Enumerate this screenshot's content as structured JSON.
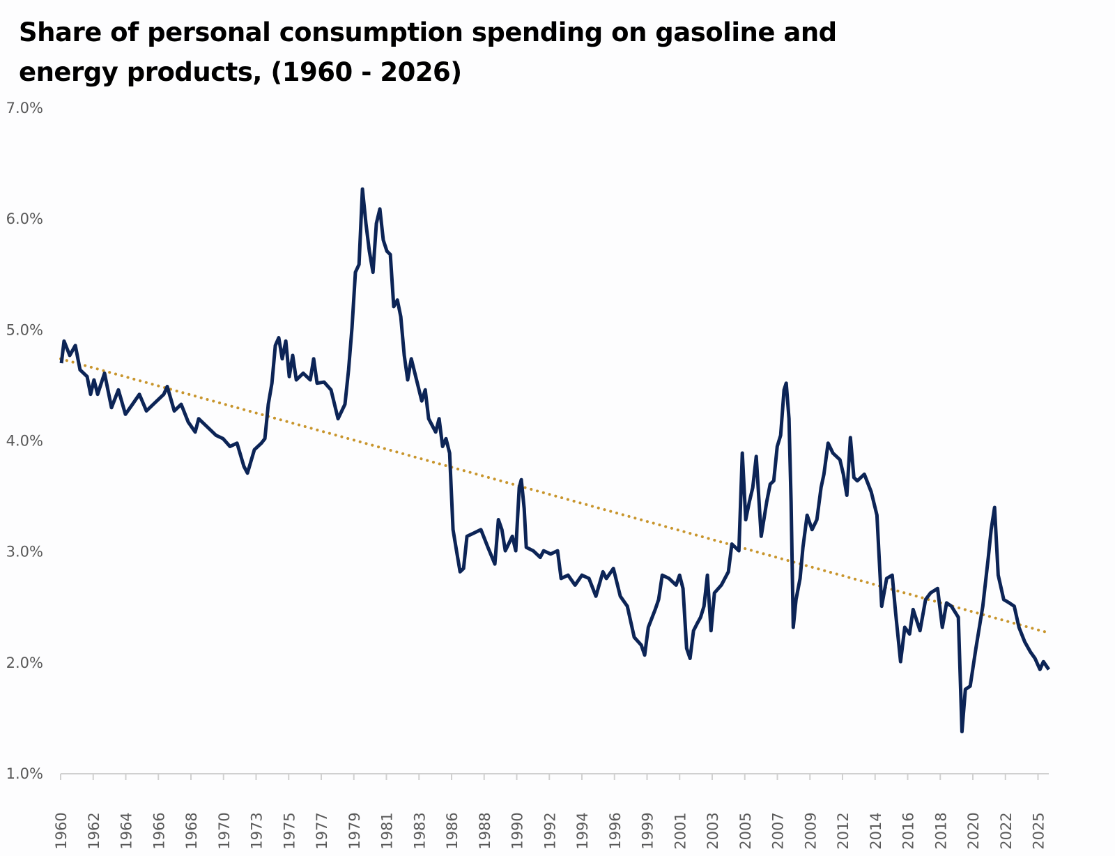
{
  "chart_data": {
    "type": "line",
    "title": "Share of personal consumption spending on gasoline and energy products, (1960 - 2026)",
    "xlabel": "",
    "ylabel": "",
    "ylim": [
      1.0,
      7.0
    ],
    "xlim": [
      1960,
      2026
    ],
    "y_ticks": [
      "1.0%",
      "2.0%",
      "3.0%",
      "4.0%",
      "5.0%",
      "6.0%",
      "7.0%"
    ],
    "x_ticks": [
      "1960",
      "1962",
      "1964",
      "1966",
      "1968",
      "1970",
      "1973",
      "1975",
      "1977",
      "1979",
      "1981",
      "1983",
      "1986",
      "1988",
      "1990",
      "1992",
      "1994",
      "1996",
      "1999",
      "2001",
      "2003",
      "2005",
      "2007",
      "2009",
      "2012",
      "2014",
      "2016",
      "2018",
      "2020",
      "2022",
      "2025"
    ],
    "grid": false,
    "legend": "none",
    "colors": {
      "series": "#0c2456",
      "trend": "#c8952c",
      "axis": "#d0d0d0",
      "text": "#595959"
    },
    "series": [
      {
        "style": "solid",
        "points": [
          [
            1960.05,
            4.7
          ],
          [
            1960.23,
            4.9
          ],
          [
            1960.61,
            4.77
          ],
          [
            1960.98,
            4.86
          ],
          [
            1961.3,
            4.64
          ],
          [
            1961.77,
            4.58
          ],
          [
            1962.0,
            4.42
          ],
          [
            1962.23,
            4.55
          ],
          [
            1962.47,
            4.42
          ],
          [
            1962.93,
            4.61
          ],
          [
            1963.4,
            4.3
          ],
          [
            1963.86,
            4.46
          ],
          [
            1964.33,
            4.24
          ],
          [
            1964.8,
            4.33
          ],
          [
            1965.26,
            4.42
          ],
          [
            1965.73,
            4.27
          ],
          [
            1966.19,
            4.33
          ],
          [
            1966.89,
            4.42
          ],
          [
            1967.12,
            4.49
          ],
          [
            1967.59,
            4.27
          ],
          [
            1968.05,
            4.33
          ],
          [
            1968.52,
            4.17
          ],
          [
            1968.99,
            4.08
          ],
          [
            1969.22,
            4.2
          ],
          [
            1969.92,
            4.11
          ],
          [
            1970.38,
            4.05
          ],
          [
            1970.85,
            4.02
          ],
          [
            1971.31,
            3.95
          ],
          [
            1971.78,
            3.98
          ],
          [
            1972.24,
            3.77
          ],
          [
            1972.48,
            3.71
          ],
          [
            1972.94,
            3.92
          ],
          [
            1973.41,
            3.98
          ],
          [
            1973.64,
            4.02
          ],
          [
            1973.87,
            4.33
          ],
          [
            1974.11,
            4.52
          ],
          [
            1974.34,
            4.86
          ],
          [
            1974.57,
            4.93
          ],
          [
            1974.8,
            4.74
          ],
          [
            1975.04,
            4.9
          ],
          [
            1975.27,
            4.58
          ],
          [
            1975.5,
            4.77
          ],
          [
            1975.74,
            4.55
          ],
          [
            1976.2,
            4.61
          ],
          [
            1976.67,
            4.55
          ],
          [
            1976.9,
            4.74
          ],
          [
            1977.13,
            4.52
          ],
          [
            1977.6,
            4.53
          ],
          [
            1978.06,
            4.46
          ],
          [
            1978.53,
            4.2
          ],
          [
            1978.99,
            4.33
          ],
          [
            1979.23,
            4.64
          ],
          [
            1979.46,
            5.02
          ],
          [
            1979.69,
            5.52
          ],
          [
            1979.93,
            5.59
          ],
          [
            1980.16,
            6.27
          ],
          [
            1980.39,
            5.96
          ],
          [
            1980.62,
            5.71
          ],
          [
            1980.86,
            5.52
          ],
          [
            1981.09,
            5.96
          ],
          [
            1981.32,
            6.09
          ],
          [
            1981.55,
            5.81
          ],
          [
            1981.79,
            5.71
          ],
          [
            1982.02,
            5.68
          ],
          [
            1982.25,
            5.21
          ],
          [
            1982.49,
            5.27
          ],
          [
            1982.72,
            5.12
          ],
          [
            1982.95,
            4.77
          ],
          [
            1983.18,
            4.55
          ],
          [
            1983.42,
            4.74
          ],
          [
            1983.88,
            4.49
          ],
          [
            1984.12,
            4.36
          ],
          [
            1984.35,
            4.46
          ],
          [
            1984.58,
            4.2
          ],
          [
            1985.05,
            4.08
          ],
          [
            1985.28,
            4.2
          ],
          [
            1985.51,
            3.95
          ],
          [
            1985.74,
            4.02
          ],
          [
            1985.98,
            3.89
          ],
          [
            1986.21,
            3.2
          ],
          [
            1986.44,
            3.01
          ],
          [
            1986.68,
            2.82
          ],
          [
            1986.91,
            2.85
          ],
          [
            1987.14,
            3.14
          ],
          [
            1987.61,
            3.17
          ],
          [
            1988.07,
            3.2
          ],
          [
            1988.54,
            3.04
          ],
          [
            1989.0,
            2.89
          ],
          [
            1989.24,
            3.29
          ],
          [
            1989.47,
            3.2
          ],
          [
            1989.7,
            3.01
          ],
          [
            1990.17,
            3.14
          ],
          [
            1990.4,
            3.01
          ],
          [
            1990.63,
            3.58
          ],
          [
            1990.77,
            3.65
          ],
          [
            1990.96,
            3.39
          ],
          [
            1991.1,
            3.04
          ],
          [
            1991.56,
            3.01
          ],
          [
            1992.03,
            2.95
          ],
          [
            1992.26,
            3.01
          ],
          [
            1992.73,
            2.98
          ],
          [
            1993.19,
            3.01
          ],
          [
            1993.43,
            2.76
          ],
          [
            1993.89,
            2.79
          ],
          [
            1994.36,
            2.7
          ],
          [
            1994.82,
            2.79
          ],
          [
            1995.29,
            2.76
          ],
          [
            1995.75,
            2.6
          ],
          [
            1996.22,
            2.82
          ],
          [
            1996.45,
            2.76
          ],
          [
            1996.92,
            2.85
          ],
          [
            1997.38,
            2.6
          ],
          [
            1997.85,
            2.51
          ],
          [
            1998.31,
            2.23
          ],
          [
            1998.78,
            2.16
          ],
          [
            1999.01,
            2.07
          ],
          [
            1999.25,
            2.32
          ],
          [
            1999.71,
            2.48
          ],
          [
            1999.94,
            2.57
          ],
          [
            2000.18,
            2.79
          ],
          [
            2000.64,
            2.76
          ],
          [
            2001.11,
            2.7
          ],
          [
            2001.34,
            2.79
          ],
          [
            2001.57,
            2.67
          ],
          [
            2001.81,
            2.13
          ],
          [
            2002.04,
            2.04
          ],
          [
            2002.27,
            2.29
          ],
          [
            2002.5,
            2.35
          ],
          [
            2002.74,
            2.41
          ],
          [
            2002.97,
            2.51
          ],
          [
            2003.2,
            2.79
          ],
          [
            2003.44,
            2.29
          ],
          [
            2003.67,
            2.63
          ],
          [
            2004.13,
            2.7
          ],
          [
            2004.6,
            2.82
          ],
          [
            2004.83,
            3.07
          ],
          [
            2005.3,
            3.01
          ],
          [
            2005.53,
            3.89
          ],
          [
            2005.76,
            3.29
          ],
          [
            2006.0,
            3.45
          ],
          [
            2006.23,
            3.58
          ],
          [
            2006.46,
            3.86
          ],
          [
            2006.79,
            3.14
          ],
          [
            2007.16,
            3.45
          ],
          [
            2007.39,
            3.61
          ],
          [
            2007.63,
            3.64
          ],
          [
            2007.86,
            3.95
          ],
          [
            2008.09,
            4.05
          ],
          [
            2008.32,
            4.46
          ],
          [
            2008.46,
            4.52
          ],
          [
            2008.65,
            4.2
          ],
          [
            2008.79,
            3.45
          ],
          [
            2008.93,
            2.32
          ],
          [
            2009.12,
            2.57
          ],
          [
            2009.39,
            2.76
          ],
          [
            2009.58,
            3.04
          ],
          [
            2009.86,
            3.33
          ],
          [
            2010.19,
            3.2
          ],
          [
            2010.51,
            3.29
          ],
          [
            2010.79,
            3.58
          ],
          [
            2010.98,
            3.7
          ],
          [
            2011.26,
            3.98
          ],
          [
            2011.58,
            3.89
          ],
          [
            2012.05,
            3.83
          ],
          [
            2012.28,
            3.7
          ],
          [
            2012.51,
            3.51
          ],
          [
            2012.75,
            4.03
          ],
          [
            2012.98,
            3.67
          ],
          [
            2013.21,
            3.64
          ],
          [
            2013.68,
            3.7
          ],
          [
            2014.14,
            3.54
          ],
          [
            2014.52,
            3.33
          ],
          [
            2014.84,
            2.51
          ],
          [
            2015.17,
            2.76
          ],
          [
            2015.54,
            2.79
          ],
          [
            2015.77,
            2.45
          ],
          [
            2016.1,
            2.01
          ],
          [
            2016.38,
            2.32
          ],
          [
            2016.7,
            2.26
          ],
          [
            2016.94,
            2.48
          ],
          [
            2017.4,
            2.29
          ],
          [
            2017.77,
            2.57
          ],
          [
            2018.1,
            2.63
          ],
          [
            2018.57,
            2.67
          ],
          [
            2018.89,
            2.32
          ],
          [
            2019.17,
            2.54
          ],
          [
            2019.5,
            2.51
          ],
          [
            2019.96,
            2.41
          ],
          [
            2020.2,
            1.38
          ],
          [
            2020.43,
            1.76
          ],
          [
            2020.75,
            1.79
          ],
          [
            2021.13,
            2.13
          ],
          [
            2021.59,
            2.51
          ],
          [
            2021.96,
            2.95
          ],
          [
            2022.15,
            3.2
          ],
          [
            2022.38,
            3.4
          ],
          [
            2022.62,
            2.79
          ],
          [
            2022.99,
            2.57
          ],
          [
            2023.36,
            2.54
          ],
          [
            2023.69,
            2.51
          ],
          [
            2024.01,
            2.32
          ],
          [
            2024.39,
            2.19
          ],
          [
            2024.76,
            2.1
          ],
          [
            2025.08,
            2.04
          ],
          [
            2025.41,
            1.94
          ],
          [
            2025.64,
            2.01
          ],
          [
            2026.0,
            1.94
          ]
        ]
      },
      {
        "style": "dotted",
        "trend": "linear",
        "points": [
          [
            1960,
            4.74
          ],
          [
            2026,
            2.27
          ]
        ]
      }
    ]
  }
}
